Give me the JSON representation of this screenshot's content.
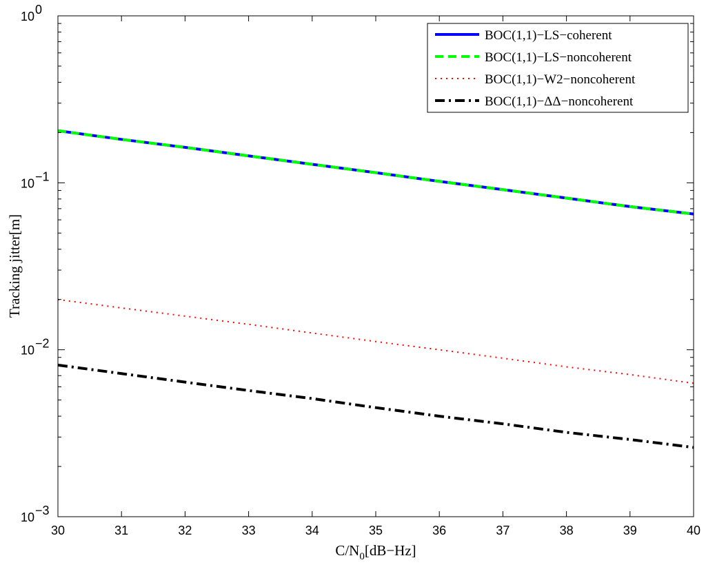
{
  "chart_data": {
    "type": "line",
    "xlabel_main": "C/N",
    "xlabel_sub": "0",
    "xlabel_rest": "[dB−Hz]",
    "ylabel": "Tracking jitter[m]",
    "xlim": [
      30,
      40
    ],
    "ylim": [
      0.001,
      1
    ],
    "yscale": "log",
    "grid": false,
    "legend_position": "top-right",
    "x_ticks": [
      "30",
      "31",
      "32",
      "33",
      "34",
      "35",
      "36",
      "37",
      "38",
      "39",
      "40"
    ],
    "y_ticks": [
      {
        "base": "10",
        "exp": "0"
      },
      {
        "base": "10",
        "exp": "−1"
      },
      {
        "base": "10",
        "exp": "−2"
      },
      {
        "base": "10",
        "exp": "−3"
      }
    ],
    "x": [
      30,
      31,
      32,
      33,
      34,
      35,
      36,
      37,
      38,
      39,
      40
    ],
    "series": [
      {
        "name": "BOC(1,1)−LS−coherent",
        "color": "#0000ff",
        "style": "solid",
        "values": [
          0.205,
          0.182,
          0.163,
          0.145,
          0.129,
          0.115,
          0.102,
          0.091,
          0.081,
          0.072,
          0.065
        ]
      },
      {
        "name": "BOC(1,1)−LS−noncoherent",
        "color": "#00ff00",
        "style": "dashed",
        "values": [
          0.205,
          0.182,
          0.163,
          0.145,
          0.129,
          0.115,
          0.102,
          0.091,
          0.081,
          0.072,
          0.065
        ]
      },
      {
        "name": "BOC(1,1)−W2−noncoherent",
        "color": "#ff0000",
        "style": "dotted",
        "values": [
          0.02,
          0.0178,
          0.0159,
          0.0142,
          0.0126,
          0.0112,
          0.01,
          0.0089,
          0.0079,
          0.0071,
          0.0063
        ]
      },
      {
        "name": "BOC(1,1)−ΔΔ−noncoherent",
        "color": "#000000",
        "style": "dashdot",
        "values": [
          0.0081,
          0.0072,
          0.0064,
          0.0057,
          0.0051,
          0.0045,
          0.004,
          0.0036,
          0.0032,
          0.0029,
          0.0026
        ]
      }
    ]
  }
}
